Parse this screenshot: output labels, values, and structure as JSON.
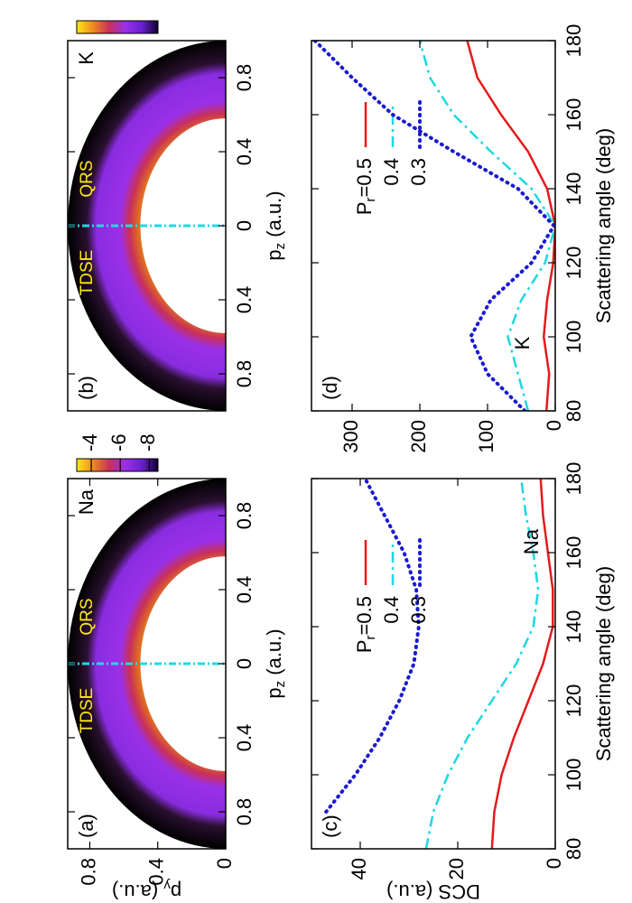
{
  "chart_data": [
    {
      "type": "heatmap",
      "panel": "(a)",
      "annotations": [
        "TDSE",
        "QRS",
        "Na"
      ],
      "xlabel": [
        "p",
        "z",
        " (a.u.)"
      ],
      "ylabel": [
        "p",
        "y",
        " (a.u.)"
      ],
      "xlim": [
        -1,
        1
      ],
      "xticks": [
        {
          "value": -0.8,
          "label": "0.8"
        },
        {
          "value": -0.4,
          "label": "0.4"
        },
        0,
        0.4,
        0.8
      ],
      "ylim": [
        0,
        0.93
      ],
      "yticks": [
        0,
        0.4,
        0.8
      ],
      "divider_color": "#22d8e0",
      "colorbar": {
        "lim": [
          -3,
          -8.6
        ],
        "ticks": [
          -4,
          -6,
          -8
        ],
        "colors": [
          "#ffe81a",
          "#f08a20",
          "#c8305a",
          "#9a30e8",
          "#6a20d0",
          "#100030"
        ]
      }
    },
    {
      "type": "heatmap",
      "panel": "(b)",
      "annotations": [
        "TDSE",
        "QRS",
        "K"
      ],
      "xlabel": [
        "p",
        "z",
        " (a.u.)"
      ],
      "xlim": [
        -1,
        1
      ],
      "xticks": [
        {
          "value": -0.8,
          "label": "0.8"
        },
        {
          "value": -0.4,
          "label": "0.4"
        },
        0,
        0.4,
        0.8
      ],
      "divider_color": "#22d8e0",
      "colorbar": {
        "colors": [
          "#ffe81a",
          "#f08a20",
          "#c8305a",
          "#9a30e8",
          "#6a20d0",
          "#100030"
        ]
      }
    },
    {
      "type": "line",
      "panel": "(c)",
      "annotations": [
        "Na"
      ],
      "xlabel": "Scattering angle (deg)",
      "ylabel": "DCS (a.u.)",
      "x": [
        80,
        90,
        100,
        110,
        120,
        130,
        140,
        150,
        160,
        170,
        180
      ],
      "xlim": [
        80,
        180
      ],
      "xticks": [
        80,
        100,
        120,
        140,
        160,
        180
      ],
      "ylim": [
        0,
        50
      ],
      "yticks": [
        0,
        20,
        40
      ],
      "series": [
        {
          "name": [
            "P",
            "r",
            "=0.5"
          ],
          "color": "#e41a1c",
          "style": "solid",
          "values": [
            13,
            12.5,
            11,
            8.5,
            5.5,
            2.5,
            0.5,
            0.5,
            1.5,
            2.5,
            3
          ]
        },
        {
          "name": "0.4",
          "color": "#1ed8e0",
          "style": "dashdot",
          "values": [
            26.5,
            25,
            22,
            18,
            13,
            8,
            4.5,
            3.5,
            4.5,
            6,
            7
          ]
        },
        {
          "name": "0.3",
          "color": "#1a1ad0",
          "style": "dotted",
          "values": [
            null,
            47,
            41,
            36,
            32,
            29,
            28,
            28.5,
            31,
            35,
            39
          ]
        }
      ]
    },
    {
      "type": "line",
      "panel": "(d)",
      "annotations": [
        "K"
      ],
      "xlabel": "Scattering angle (deg)",
      "x": [
        80,
        90,
        100,
        110,
        120,
        130,
        140,
        150,
        160,
        170,
        180
      ],
      "xlim": [
        80,
        180
      ],
      "xticks": [
        80,
        100,
        120,
        140,
        160,
        180
      ],
      "ylim": [
        0,
        360
      ],
      "yticks": [
        0,
        100,
        200,
        300
      ],
      "series": [
        {
          "name": [
            "P",
            "r",
            "=0.5"
          ],
          "color": "#e41a1c",
          "style": "solid",
          "values": [
            13,
            9,
            17,
            12,
            3,
            0,
            12,
            40,
            80,
            115,
            130
          ]
        },
        {
          "name": "0.4",
          "color": "#1ed8e0",
          "style": "dashdot",
          "values": [
            40,
            55,
            70,
            50,
            15,
            0,
            35,
            95,
            150,
            185,
            200
          ]
        },
        {
          "name": "0.3",
          "color": "#1a1ad0",
          "style": "dotted",
          "values": [
            45,
            100,
            125,
            95,
            35,
            2,
            55,
            150,
            240,
            300,
            355
          ]
        }
      ]
    }
  ]
}
